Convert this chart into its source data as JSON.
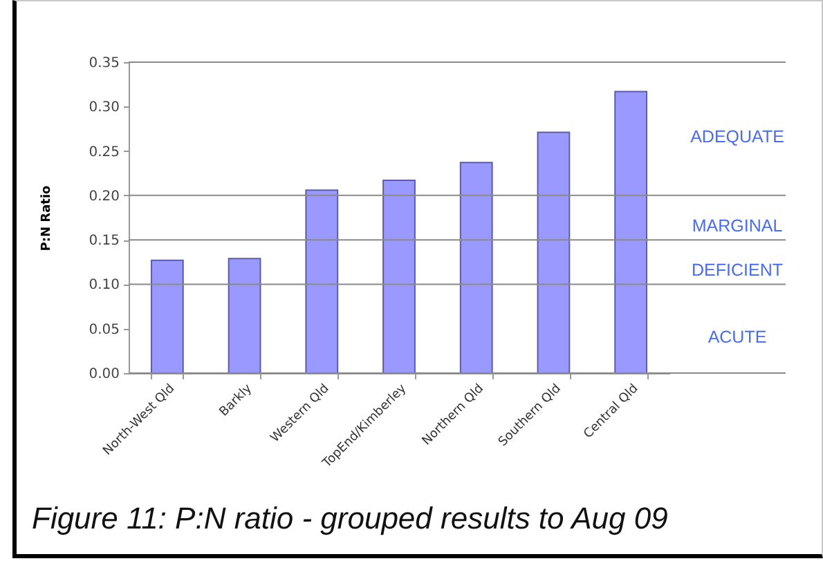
{
  "chart_data": {
    "type": "bar",
    "title": "Figure 11: P:N ratio - grouped results to Aug 09",
    "ylabel": "P:N Ratio",
    "categories": [
      "North-West Qld",
      "Barkly",
      "Western Qld",
      "TopEnd/Kimberley",
      "Northern Qld",
      "Southern Qld",
      "Central Qld"
    ],
    "values": [
      0.127,
      0.129,
      0.206,
      0.217,
      0.237,
      0.271,
      0.317
    ],
    "color": "#9999ff",
    "ylim": [
      0,
      0.35
    ],
    "yticks": [
      {
        "value": 0,
        "label": "0.00"
      },
      0.05,
      {
        "value": 0.1,
        "label": "0.10"
      },
      0.15,
      {
        "value": 0.2,
        "label": "0.20"
      },
      0.25,
      {
        "value": 0.3,
        "label": "0.30"
      },
      0.35
    ],
    "grid": false,
    "ref_lines": [
      {
        "axis": "y",
        "value": 0.1
      },
      {
        "axis": "y",
        "value": 0.15
      },
      {
        "axis": "y",
        "value": 0.2
      }
    ],
    "annotations": [
      "ADEQUATE",
      "MARGINAL",
      "DEFICIENT",
      "ACUTE"
    ]
  }
}
